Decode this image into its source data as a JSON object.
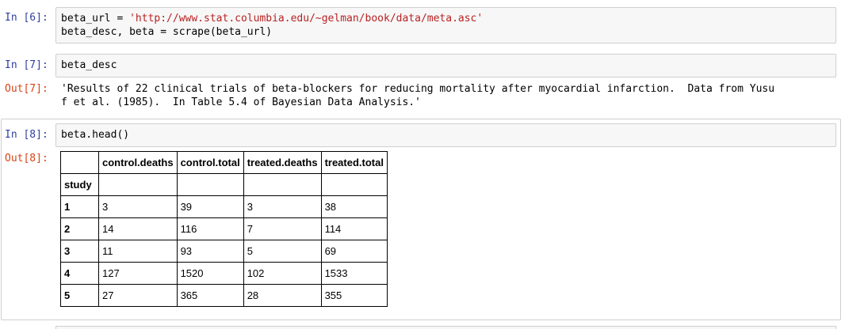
{
  "cells": {
    "c6": {
      "prompt": "In [6]:",
      "lines": [
        {
          "pre": "beta_url = ",
          "str": "'http://www.stat.columbia.edu/~gelman/book/data/meta.asc'"
        },
        {
          "pre": "beta_desc, beta = scrape(beta_url)",
          "str": ""
        }
      ]
    },
    "c7": {
      "prompt": "In [7]:",
      "code": "beta_desc",
      "out_prompt": "Out[7]:",
      "output": "'Results of 22 clinical trials of beta-blockers for reducing mortality after myocardial infarction.  Data from Yusu\nf et al. (1985).  In Table 5.4 of Bayesian Data Analysis.'"
    },
    "c8": {
      "prompt": "In [8]:",
      "code": "beta.head()",
      "out_prompt": "Out[8]:"
    }
  },
  "table": {
    "index_name": "study",
    "columns": [
      "control.deaths",
      "control.total",
      "treated.deaths",
      "treated.total"
    ],
    "rows": [
      {
        "index": "1",
        "values": [
          "3",
          "39",
          "3",
          "38"
        ]
      },
      {
        "index": "2",
        "values": [
          "14",
          "116",
          "7",
          "114"
        ]
      },
      {
        "index": "3",
        "values": [
          "11",
          "93",
          "5",
          "69"
        ]
      },
      {
        "index": "4",
        "values": [
          "127",
          "1520",
          "102",
          "1533"
        ]
      },
      {
        "index": "5",
        "values": [
          "27",
          "365",
          "28",
          "355"
        ]
      }
    ]
  }
}
